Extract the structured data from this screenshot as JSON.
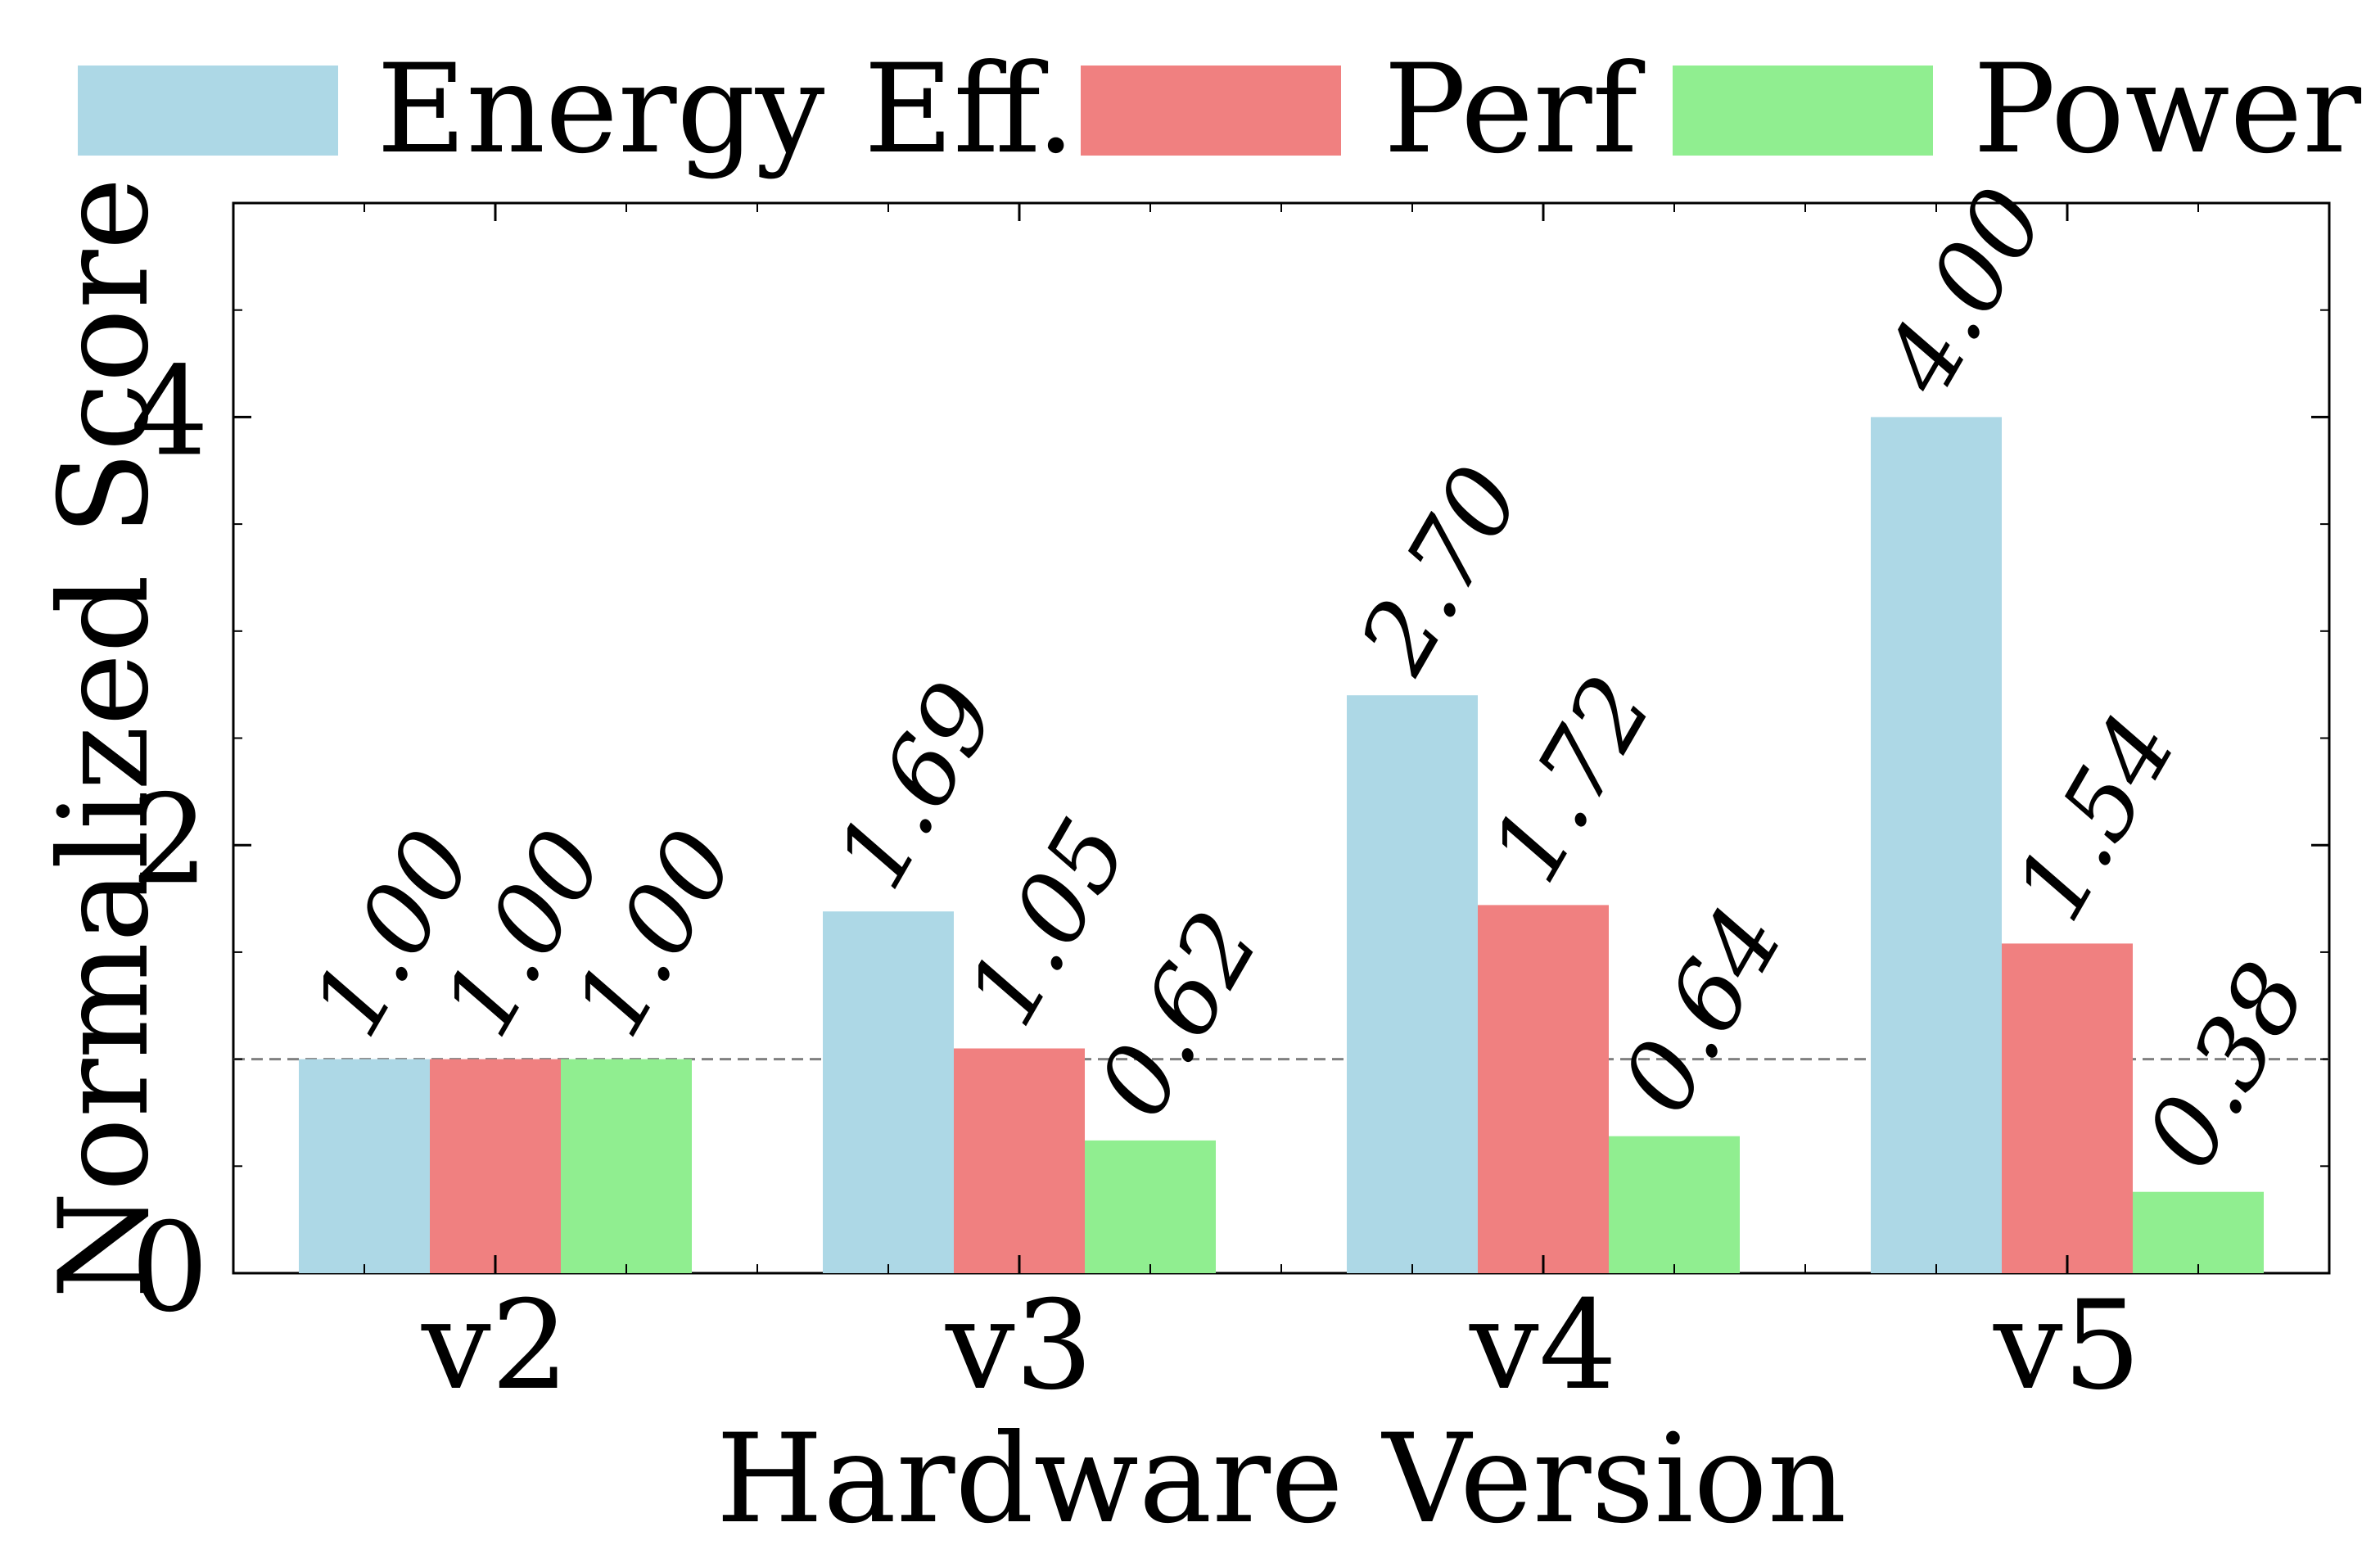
{
  "chart_data": {
    "type": "bar",
    "title": "",
    "xlabel": "Hardware Version",
    "ylabel": "Normalized Score",
    "categories": [
      "v2",
      "v3",
      "v4",
      "v5"
    ],
    "series": [
      {
        "name": "Energy Eff.",
        "color": "#add8e6",
        "values": [
          1.0,
          1.69,
          2.7,
          4.0
        ],
        "labels": [
          "1.00",
          "1.69",
          "2.70",
          "4.00"
        ]
      },
      {
        "name": "Perf",
        "color": "#f08080",
        "values": [
          1.0,
          1.05,
          1.72,
          1.54
        ],
        "labels": [
          "1.00",
          "1.05",
          "1.72",
          "1.54"
        ]
      },
      {
        "name": "Power",
        "color": "#90ee90",
        "values": [
          1.0,
          0.62,
          0.64,
          0.38
        ],
        "labels": [
          "1.00",
          "0.62",
          "0.64",
          "0.38"
        ]
      }
    ],
    "ylim": [
      0,
      5
    ],
    "yticks": [
      0,
      2,
      4
    ],
    "ytick_labels": [
      "0",
      "2",
      "4"
    ],
    "reference_line": {
      "y": 1.0,
      "style": "dashed",
      "color": "#808080"
    },
    "grid": false,
    "legend_position": "top, outside"
  }
}
